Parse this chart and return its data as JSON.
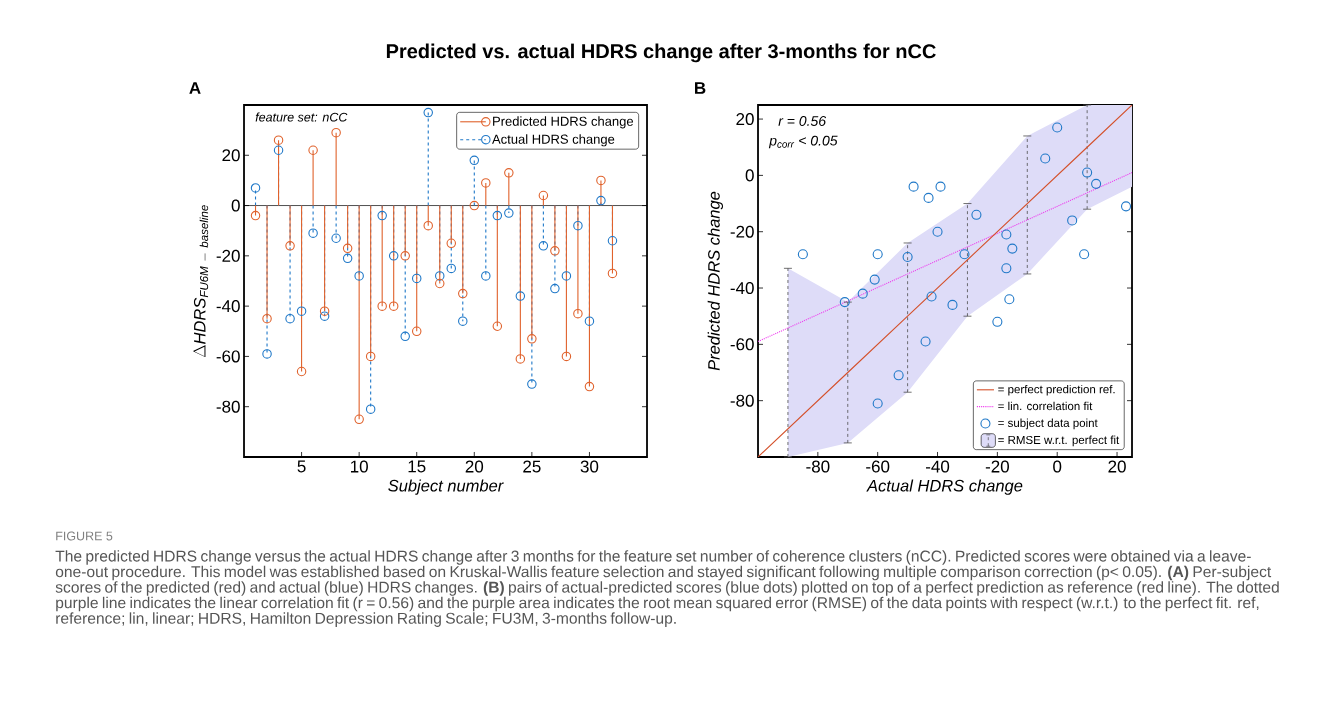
{
  "chart_data": [
    {
      "type": "lollipop",
      "title": "Predicted vs. actual HDRS change after 3-months for nCC",
      "xlabel": "Subject number",
      "ylabel": "\\Delta\\mathit{HDRS}_{\\mathit{FU6M\\ -\\ baseline}}",
      "annotations": [
        "A",
        "feature set: nCC"
      ],
      "x": [
        1,
        2,
        3,
        4,
        5,
        6,
        7,
        8,
        9,
        10,
        11,
        12,
        13,
        14,
        15,
        16,
        17,
        18,
        19,
        20,
        21,
        22,
        23,
        24,
        25,
        26,
        27,
        28,
        29,
        30,
        31,
        32
      ],
      "xlim": [
        0,
        35
      ],
      "ylim": [
        -100,
        40
      ],
      "xticks": [
        5,
        10,
        15,
        20,
        25,
        30
      ],
      "yticks": [
        -80,
        -60,
        -40,
        -20,
        0,
        20
      ],
      "legend": "top right",
      "marker": "circle",
      "ref_lines": [
        {
          "axis": "y",
          "value": 0,
          "color": "#000000"
        }
      ],
      "series": [
        {
          "name": "Predicted HDRS change",
          "color": "#e0622c",
          "line_style": "solid",
          "values": [
            -4,
            -45,
            26,
            -16,
            -66,
            22,
            -42,
            29,
            -17,
            -85,
            -60,
            -40,
            -40,
            -20,
            -50,
            -8,
            -31,
            -15,
            -35,
            0,
            9,
            -48,
            13,
            -61,
            -53,
            4,
            -18,
            -60,
            -43,
            -72,
            10,
            -27
          ]
        },
        {
          "name": "Actual HDRS change",
          "color": "#1f78c8",
          "line_style": "dashed",
          "values": [
            7,
            -59,
            22,
            -45,
            -42,
            -11,
            -44,
            -13,
            -21,
            -28,
            -81,
            -4,
            -20,
            -52,
            -29,
            37,
            -28,
            -25,
            -46,
            18,
            -28,
            -4,
            -3,
            -36,
            -71,
            -16,
            -33,
            -28,
            -8,
            -46,
            2,
            -14
          ]
        }
      ]
    },
    {
      "type": "scatter",
      "xlabel": "Actual HDRS change",
      "ylabel": "Predicted HDRS change",
      "annotations": [
        "B",
        "r = 0.56",
        "p$_{corr}$ < 0.05",
        "FIGURE 5",
        "The predicted HDRS change versus the actual HDRS change after 3 months for the feature set number of coherence clusters (nCC). Predicted scores were obtained via a leave-one-out procedure. This model was established based on Kruskal-Wallis feature selection and stayed significant following multiple comparison correction (p< 0.05). **(A)** Per-subject scores of the predicted (red) and actual (blue) HDRS changes. **(B)** pairs of actual-predicted scores (blue dots) plotted on top of a perfect prediction as reference (red line). The dotted purple line indicates the linear correlation fit (r = 0.56) and the purple area indicates the root mean squared error (RMSE) of the data points with respect (w.r.t.) to the perfect fit. ref, reference; lin, linear; HDRS, Hamilton Depression Rating Scale; FU3M, 3-months follow-up.",
        "= RMSE w.r.t. perfect fit"
      ],
      "xlim": [
        -100,
        25
      ],
      "ylim": [
        -100,
        25
      ],
      "xticks": [
        -80,
        -60,
        -40,
        -20,
        0,
        20
      ],
      "yticks": [
        -80,
        -60,
        -40,
        -20,
        0,
        20
      ],
      "legend": "bottom right",
      "marker": "circle",
      "series": [
        {
          "name": "= perfect prediction ref.",
          "type": "line",
          "color": "#d4502a",
          "line_style": "solid",
          "marker": "none",
          "x": [
            -100,
            -90,
            -70,
            -50,
            -30,
            -10,
            10,
            25
          ],
          "values": [
            -100,
            -90,
            -70,
            -50,
            -30,
            -10,
            10,
            25
          ],
          "lower": [
            null,
            -100,
            -95,
            -77,
            -50,
            -35,
            -12,
            -4
          ],
          "upper": [
            null,
            -33,
            -45,
            -24,
            -10,
            14,
            25,
            25
          ],
          "errors": [
            null,
            [
              -100,
              -33
            ],
            [
              -95,
              -45
            ],
            [
              -77,
              -24
            ],
            [
              -50,
              -10
            ],
            [
              -35,
              14
            ],
            [
              -12,
              25
            ],
            null
          ]
        },
        {
          "name": "= lin. correlation fit",
          "type": "line",
          "color": "#ee3cee",
          "line_style": "dotted",
          "marker": "none",
          "x": [
            -100,
            25
          ],
          "values": [
            -59,
            1
          ]
        },
        {
          "name": "= subject data point",
          "type": "scatter",
          "color": "#1f78c8",
          "x": [
            -85,
            -71,
            -65,
            -61,
            -60,
            -50,
            -53,
            -60,
            -48,
            -39,
            -43,
            -40,
            -27,
            -31,
            -42,
            -35,
            -44,
            -17,
            -15,
            -17,
            -16,
            -20,
            -4,
            0,
            10,
            13,
            23,
            5,
            9
          ],
          "values": [
            -28,
            -45,
            -42,
            -37,
            -28,
            -29,
            -71,
            -81,
            -4,
            -4,
            -8,
            -20,
            -14,
            -28,
            -43,
            -46,
            -59,
            -21,
            -26,
            -33,
            -44,
            -52,
            6,
            17,
            1,
            -3,
            -11,
            -16,
            -28
          ]
        }
      ]
    }
  ]
}
